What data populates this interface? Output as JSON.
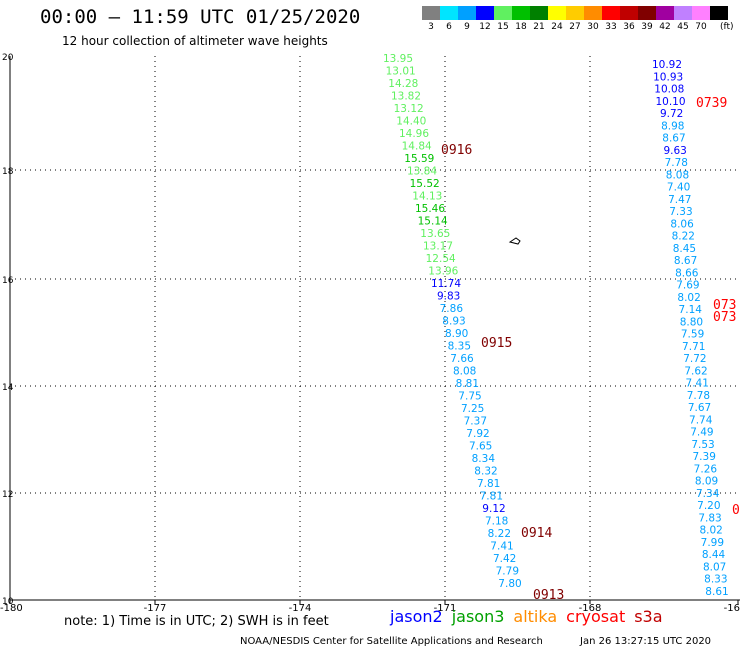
{
  "header": {
    "title": "00:00 – 11:59 UTC 01/25/2020",
    "subtitle": "12 hour collection of altimeter wave heights"
  },
  "color_scale": {
    "unit": "(ft)",
    "bins": [
      {
        "label": "3",
        "color": "#808080"
      },
      {
        "label": "6",
        "color": "#00e5ff"
      },
      {
        "label": "9",
        "color": "#00a0ff"
      },
      {
        "label": "12",
        "color": "#0000ff"
      },
      {
        "label": "15",
        "color": "#60f060"
      },
      {
        "label": "18",
        "color": "#00c000"
      },
      {
        "label": "21",
        "color": "#008000"
      },
      {
        "label": "24",
        "color": "#ffff00"
      },
      {
        "label": "27",
        "color": "#ffcc00"
      },
      {
        "label": "30",
        "color": "#ff8c00"
      },
      {
        "label": "33",
        "color": "#ff0000"
      },
      {
        "label": "36",
        "color": "#c00000"
      },
      {
        "label": "39",
        "color": "#800000"
      },
      {
        "label": "42",
        "color": "#a000a0"
      },
      {
        "label": "45",
        "color": "#c080ff"
      },
      {
        "label": "70",
        "color": "#ff80ff"
      },
      {
        "label": "",
        "color": "#000000"
      }
    ]
  },
  "axes": {
    "lat_labels": [
      "20",
      "18",
      "16",
      "14",
      "12",
      "10"
    ],
    "lon_labels": [
      "-180",
      "-177",
      "-174",
      "-171",
      "-168",
      "-16"
    ]
  },
  "tracks": [
    {
      "id": "left",
      "values": [
        {
          "v": "13.95",
          "c": "#60f060"
        },
        {
          "v": "13.01",
          "c": "#60f060"
        },
        {
          "v": "14.28",
          "c": "#60f060"
        },
        {
          "v": "13.82",
          "c": "#60f060"
        },
        {
          "v": "13.12",
          "c": "#60f060"
        },
        {
          "v": "14.40",
          "c": "#60f060"
        },
        {
          "v": "14.96",
          "c": "#60f060"
        },
        {
          "v": "14.84",
          "c": "#60f060"
        },
        {
          "v": "15.59",
          "c": "#00c000"
        },
        {
          "v": "13.84",
          "c": "#60f060"
        },
        {
          "v": "15.52",
          "c": "#00c000"
        },
        {
          "v": "14.13",
          "c": "#60f060"
        },
        {
          "v": "15.46",
          "c": "#00c000"
        },
        {
          "v": "15.14",
          "c": "#00c000"
        },
        {
          "v": "13.65",
          "c": "#60f060"
        },
        {
          "v": "13.17",
          "c": "#60f060"
        },
        {
          "v": "12.54",
          "c": "#60f060"
        },
        {
          "v": "13.96",
          "c": "#60f060"
        },
        {
          "v": "11.74",
          "c": "#0000ff"
        },
        {
          "v": "9.83",
          "c": "#0000ff"
        },
        {
          "v": "7.86",
          "c": "#00a0ff"
        },
        {
          "v": "8.93",
          "c": "#00a0ff"
        },
        {
          "v": "8.90",
          "c": "#00a0ff"
        },
        {
          "v": "8.35",
          "c": "#00a0ff"
        },
        {
          "v": "7.66",
          "c": "#00a0ff"
        },
        {
          "v": "8.08",
          "c": "#00a0ff"
        },
        {
          "v": "8.81",
          "c": "#00a0ff"
        },
        {
          "v": "7.75",
          "c": "#00a0ff"
        },
        {
          "v": "7.25",
          "c": "#00a0ff"
        },
        {
          "v": "7.37",
          "c": "#00a0ff"
        },
        {
          "v": "7.92",
          "c": "#00a0ff"
        },
        {
          "v": "7.65",
          "c": "#00a0ff"
        },
        {
          "v": "8.34",
          "c": "#00a0ff"
        },
        {
          "v": "8.32",
          "c": "#00a0ff"
        },
        {
          "v": "7.81",
          "c": "#00a0ff"
        },
        {
          "v": "7.81",
          "c": "#00a0ff"
        },
        {
          "v": "9.12",
          "c": "#0000ff"
        },
        {
          "v": "7.18",
          "c": "#00a0ff"
        },
        {
          "v": "8.22",
          "c": "#00a0ff"
        },
        {
          "v": "7.41",
          "c": "#00a0ff"
        },
        {
          "v": "7.42",
          "c": "#00a0ff"
        },
        {
          "v": "7.79",
          "c": "#00a0ff"
        },
        {
          "v": "7.80",
          "c": "#00a0ff"
        }
      ]
    },
    {
      "id": "right",
      "values": [
        {
          "v": "10.92",
          "c": "#0000ff"
        },
        {
          "v": "10.93",
          "c": "#0000ff"
        },
        {
          "v": "10.08",
          "c": "#0000ff"
        },
        {
          "v": "10.10",
          "c": "#0000ff"
        },
        {
          "v": "9.72",
          "c": "#0000ff"
        },
        {
          "v": "8.98",
          "c": "#00a0ff"
        },
        {
          "v": "8.67",
          "c": "#00a0ff"
        },
        {
          "v": "9.63",
          "c": "#0000ff"
        },
        {
          "v": "7.78",
          "c": "#00a0ff"
        },
        {
          "v": "8.08",
          "c": "#00a0ff"
        },
        {
          "v": "7.40",
          "c": "#00a0ff"
        },
        {
          "v": "7.47",
          "c": "#00a0ff"
        },
        {
          "v": "7.33",
          "c": "#00a0ff"
        },
        {
          "v": "8.06",
          "c": "#00a0ff"
        },
        {
          "v": "8.22",
          "c": "#00a0ff"
        },
        {
          "v": "8.45",
          "c": "#00a0ff"
        },
        {
          "v": "8.67",
          "c": "#00a0ff"
        },
        {
          "v": "8.66",
          "c": "#00a0ff"
        },
        {
          "v": "7.69",
          "c": "#00a0ff"
        },
        {
          "v": "8.02",
          "c": "#00a0ff"
        },
        {
          "v": "7.14",
          "c": "#00a0ff"
        },
        {
          "v": "8.80",
          "c": "#00a0ff"
        },
        {
          "v": "7.59",
          "c": "#00a0ff"
        },
        {
          "v": "7.71",
          "c": "#00a0ff"
        },
        {
          "v": "7.72",
          "c": "#00a0ff"
        },
        {
          "v": "7.62",
          "c": "#00a0ff"
        },
        {
          "v": "7.41",
          "c": "#00a0ff"
        },
        {
          "v": "7.78",
          "c": "#00a0ff"
        },
        {
          "v": "7.67",
          "c": "#00a0ff"
        },
        {
          "v": "7.74",
          "c": "#00a0ff"
        },
        {
          "v": "7.49",
          "c": "#00a0ff"
        },
        {
          "v": "7.53",
          "c": "#00a0ff"
        },
        {
          "v": "7.39",
          "c": "#00a0ff"
        },
        {
          "v": "7.26",
          "c": "#00a0ff"
        },
        {
          "v": "8.09",
          "c": "#00a0ff"
        },
        {
          "v": "7.34",
          "c": "#00a0ff"
        },
        {
          "v": "7.20",
          "c": "#00a0ff"
        },
        {
          "v": "7.83",
          "c": "#00a0ff"
        },
        {
          "v": "8.02",
          "c": "#00a0ff"
        },
        {
          "v": "7.99",
          "c": "#00a0ff"
        },
        {
          "v": "8.44",
          "c": "#00a0ff"
        },
        {
          "v": "8.07",
          "c": "#00a0ff"
        },
        {
          "v": "8.33",
          "c": "#00a0ff"
        },
        {
          "v": "8.61",
          "c": "#00a0ff"
        }
      ]
    }
  ],
  "time_labels": [
    {
      "text": "0916",
      "color": "#800000"
    },
    {
      "text": "0915",
      "color": "#800000"
    },
    {
      "text": "0914",
      "color": "#800000"
    },
    {
      "text": "0913",
      "color": "#800000"
    },
    {
      "text": "0739",
      "color": "#ff0000"
    },
    {
      "text": "073",
      "color": "#ff0000"
    },
    {
      "text": "073",
      "color": "#ff0000"
    },
    {
      "text": "0",
      "color": "#ff0000"
    }
  ],
  "footer": {
    "note": "note: 1) Time is in UTC; 2) SWH is in feet",
    "satellites": [
      {
        "name": "jason2",
        "color": "#0000ff"
      },
      {
        "name": "jason3",
        "color": "#00a000"
      },
      {
        "name": "altika",
        "color": "#ff8c00"
      },
      {
        "name": "cryosat",
        "color": "#ff0000"
      },
      {
        "name": "s3a",
        "color": "#c00000"
      }
    ],
    "credit": "NOAA/NESDIS Center for Satellite Applications and Research",
    "timestamp": "Jan 26 13:27:15 UTC 2020"
  }
}
